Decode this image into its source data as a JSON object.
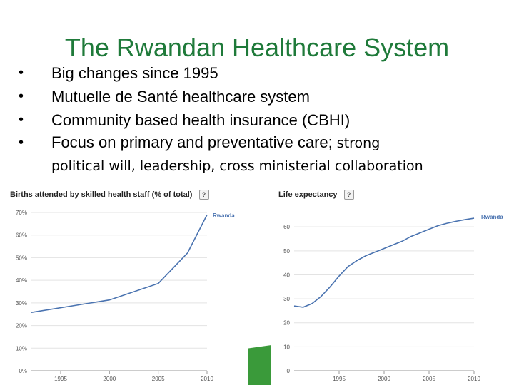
{
  "slide": {
    "title": "The Rwandan Healthcare System",
    "bullets": [
      {
        "text": "Big changes since 1995"
      },
      {
        "text": "Mutuelle de Santé healthcare system"
      },
      {
        "text": "Community based health insurance (CBHI)"
      },
      {
        "text": "Focus on primary and preventative care;",
        "tail": " strong",
        "continuation": "political will, leadership, cross ministerial collaboration"
      }
    ],
    "bullet_glyph": "•",
    "help_icon": "?",
    "accent_color": "#3a9a3a",
    "title_color": "#1f7a3a"
  },
  "chart_data": [
    {
      "type": "line",
      "title": "Births attended by skilled health staff (% of total)",
      "series": [
        {
          "name": "Rwanda",
          "color": "#4a73b0",
          "x": [
            1992,
            2000,
            2005,
            2008,
            2010
          ],
          "y": [
            25.8,
            31.3,
            38.6,
            52.1,
            69.0
          ]
        }
      ],
      "xticks": [
        1995,
        2000,
        2005,
        2010
      ],
      "xticklabels": [
        "1995",
        "2000",
        "2005",
        "2010"
      ],
      "yticks": [
        0,
        10,
        20,
        30,
        40,
        50,
        60,
        70
      ],
      "yticklabels": [
        "0%",
        "10%",
        "20%",
        "30%",
        "40%",
        "50%",
        "60%",
        "70%"
      ],
      "xlim": [
        1992,
        2010
      ],
      "ylim": [
        0,
        70
      ],
      "grid": true
    },
    {
      "type": "line",
      "title": "Life expectancy",
      "series": [
        {
          "name": "Rwanda",
          "color": "#4a73b0",
          "x": [
            1990,
            1991,
            1992,
            1993,
            1994,
            1995,
            1996,
            1997,
            1998,
            1999,
            2000,
            2001,
            2002,
            2003,
            2004,
            2005,
            2006,
            2007,
            2008,
            2009,
            2010
          ],
          "y": [
            27.0,
            26.5,
            28.0,
            31.0,
            35.0,
            39.5,
            43.5,
            46.0,
            48.0,
            49.5,
            51.0,
            52.5,
            54.0,
            56.0,
            57.5,
            59.0,
            60.5,
            61.5,
            62.3,
            63.0,
            63.6
          ]
        }
      ],
      "xticks": [
        1995,
        2000,
        2005,
        2010
      ],
      "xticklabels": [
        "1995",
        "2000",
        "2005",
        "2010"
      ],
      "yticks": [
        0,
        10,
        20,
        30,
        40,
        50,
        60
      ],
      "yticklabels": [
        "0",
        "10",
        "20",
        "30",
        "40",
        "50",
        "60"
      ],
      "xlim": [
        1990,
        2010
      ],
      "ylim": [
        0,
        66
      ],
      "grid": true
    }
  ]
}
